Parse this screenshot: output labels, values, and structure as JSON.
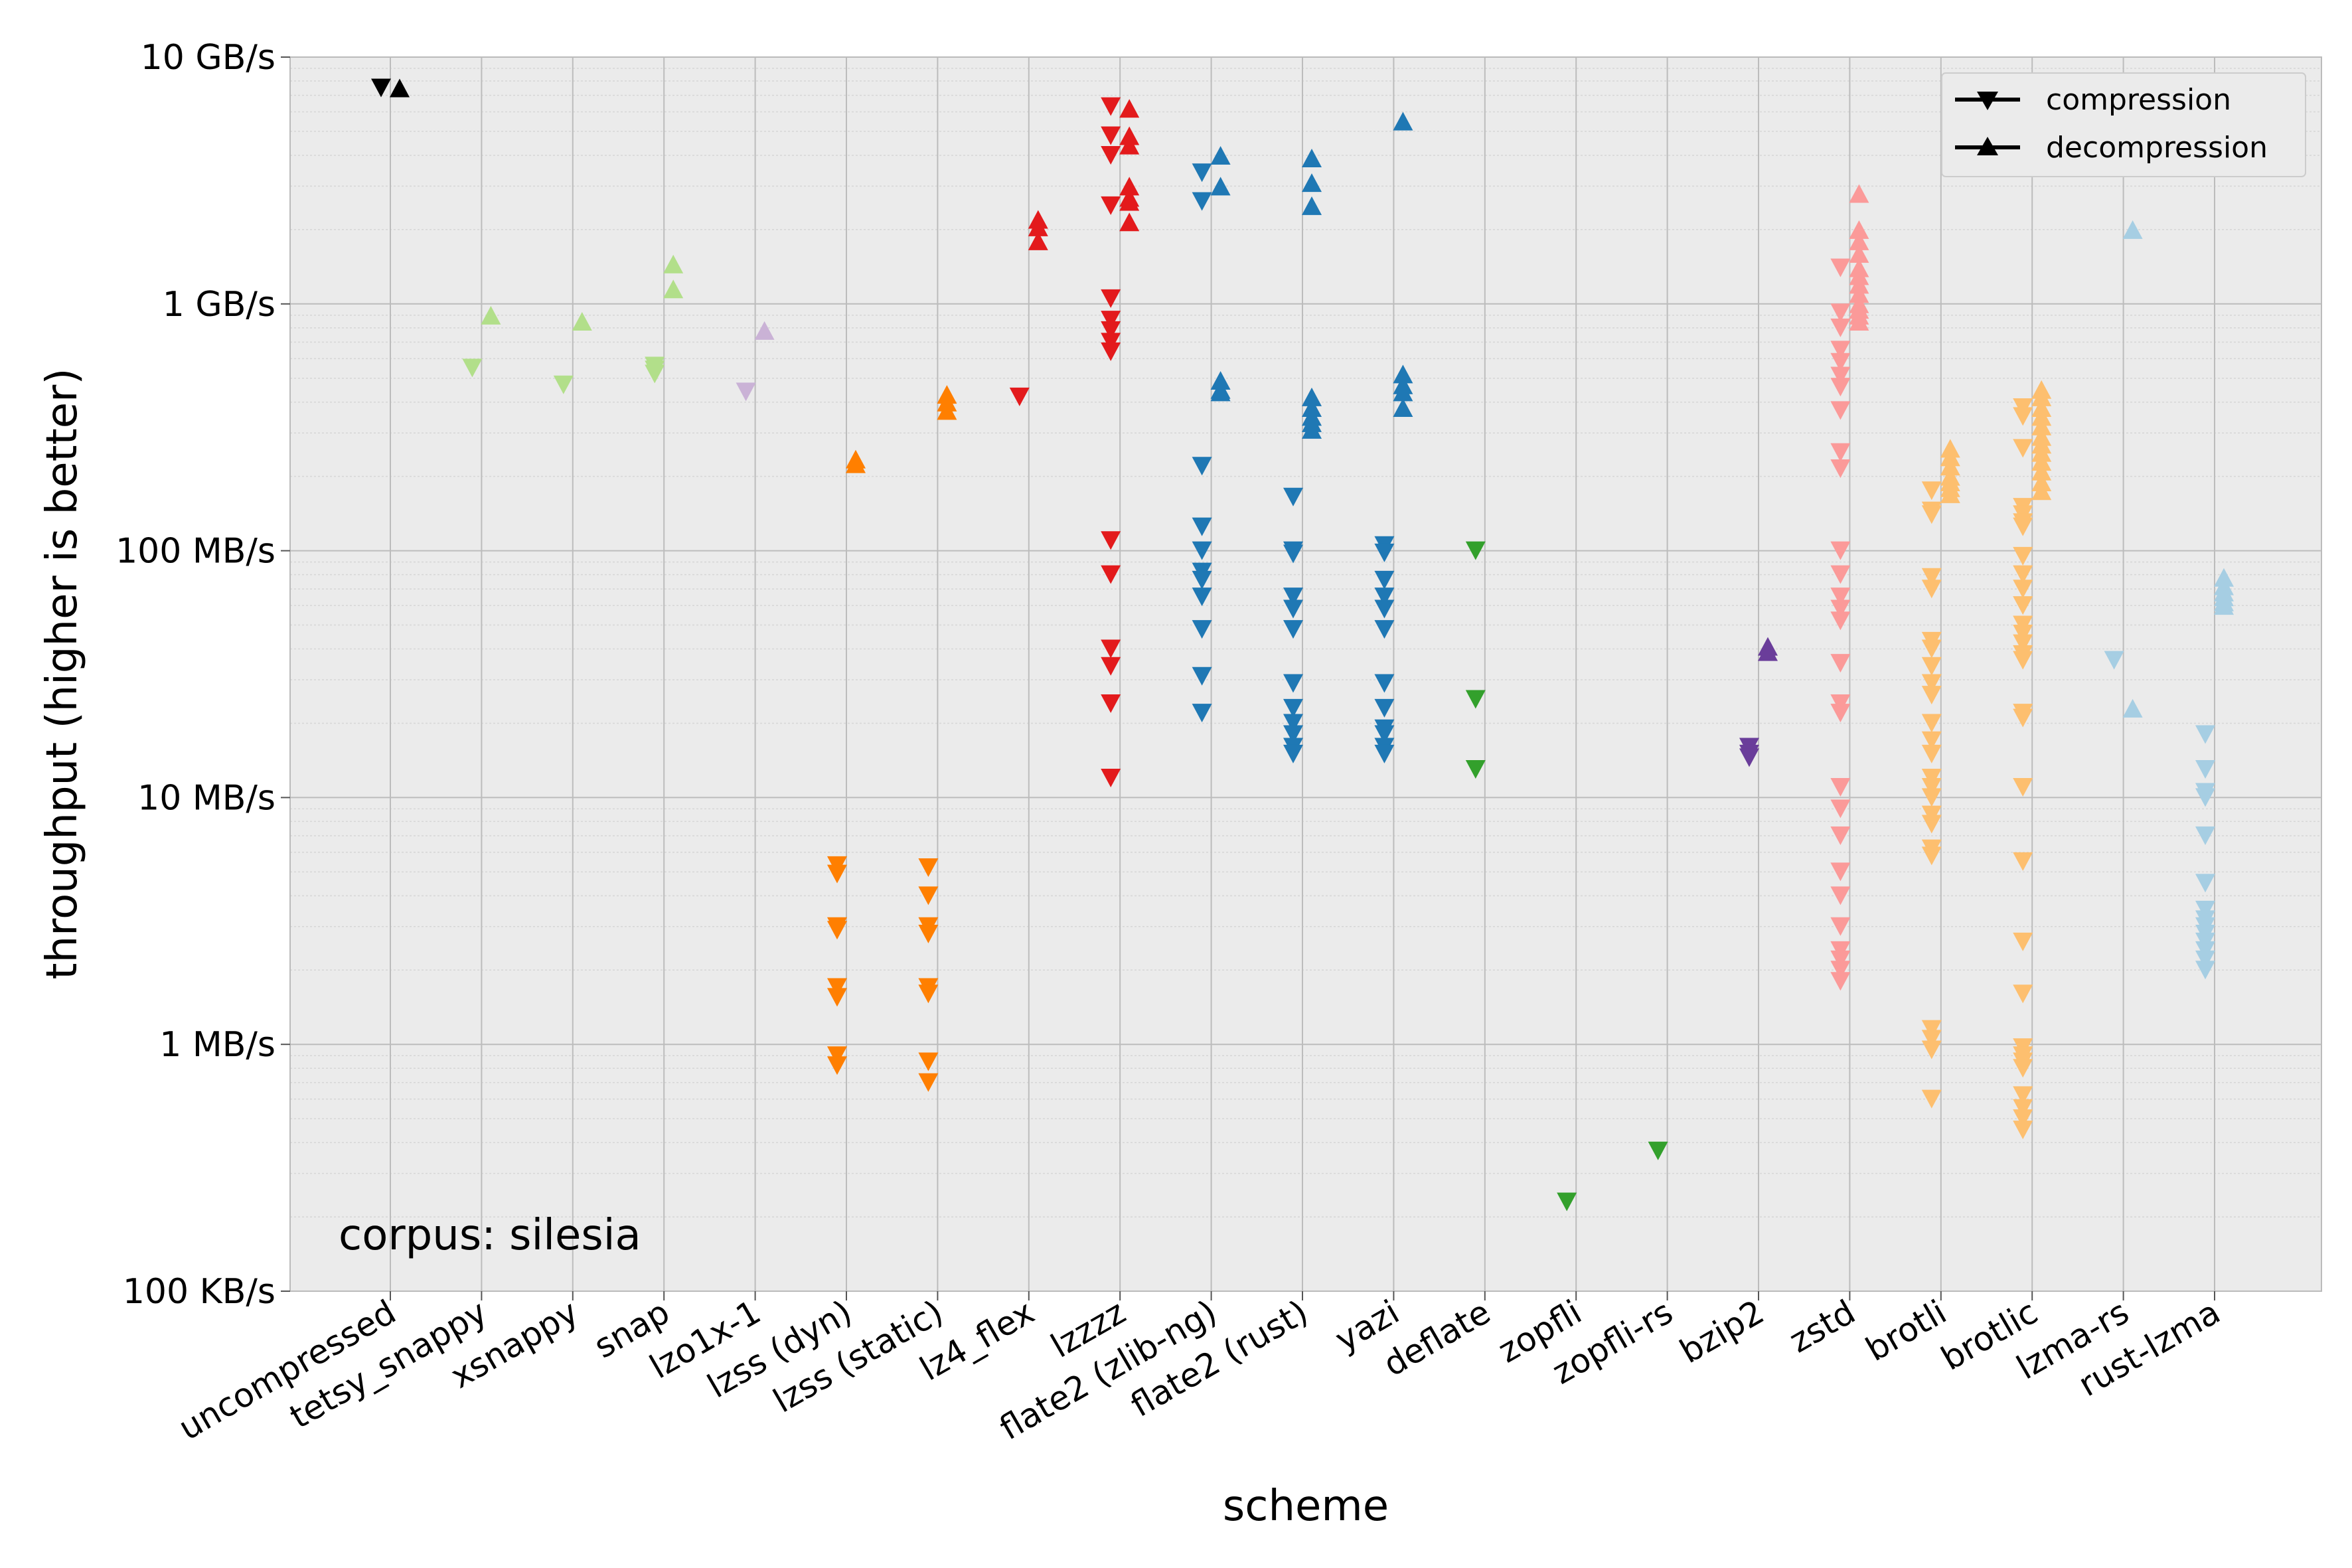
{
  "chart_data": {
    "type": "scatter",
    "title": "",
    "xlabel": "scheme",
    "ylabel": "throughput (higher is better)",
    "yscale": "log",
    "ylim_bytes_per_s": [
      100000,
      10000000000
    ],
    "yticks": [
      {
        "value": 100000,
        "label": "100 KB/s"
      },
      {
        "value": 1000000,
        "label": "1 MB/s"
      },
      {
        "value": 10000000,
        "label": "10 MB/s"
      },
      {
        "value": 100000000,
        "label": "100 MB/s"
      },
      {
        "value": 1000000000,
        "label": "1 GB/s"
      },
      {
        "value": 10000000000,
        "label": "10 GB/s"
      }
    ],
    "grid": true,
    "annotation": "corpus: silesia",
    "legend": {
      "placement": "top-right",
      "entries": [
        {
          "label": "compression",
          "marker": "down-triangle"
        },
        {
          "label": "decompression",
          "marker": "up-triangle"
        }
      ]
    },
    "value_unit": "MB/s",
    "schemes": [
      {
        "name": "uncompressed",
        "color": "#000000",
        "compression": [
          7500
        ],
        "decompression": [
          7500
        ]
      },
      {
        "name": "tetsy_snappy",
        "color": "#b2df8a",
        "compression": [
          550
        ],
        "decompression": [
          900
        ]
      },
      {
        "name": "xsnappy",
        "color": "#b2df8a",
        "compression": [
          470
        ],
        "decompression": [
          850
        ]
      },
      {
        "name": "snap",
        "color": "#b2df8a",
        "compression": [
          560,
          540,
          520
        ],
        "decompression": [
          1450,
          1150
        ]
      },
      {
        "name": "lzo1x-1",
        "color": "#cab2d6",
        "compression": [
          440
        ],
        "decompression": [
          780
        ]
      },
      {
        "name": "lzss (dyn)",
        "color": "#ff7f00",
        "compression": [
          5.3,
          4.9,
          3.0,
          2.9,
          1.7,
          1.55,
          0.9,
          0.82
        ],
        "decompression": [
          235,
          225
        ]
      },
      {
        "name": "lzss (static)",
        "color": "#ff7f00",
        "compression": [
          5.2,
          4.0,
          3.0,
          2.8,
          1.7,
          1.6,
          0.85,
          0.7
        ],
        "decompression": [
          430,
          400,
          370
        ]
      },
      {
        "name": "lz4_flex",
        "color": "#e31a1c",
        "compression": [
          420
        ],
        "decompression": [
          2200,
          2050,
          1800
        ]
      },
      {
        "name": "lzzzz",
        "color": "#e31a1c",
        "compression": [
          6300,
          4800,
          4000,
          2500,
          1050,
          860,
          780,
          700,
          640,
          110,
          80,
          40,
          34,
          24,
          12
        ],
        "decompression": [
          6200,
          4800,
          4400,
          3000,
          2700,
          2600,
          2150
        ]
      },
      {
        "name": "flate2 (zlib-ng)",
        "color": "#1f78b4",
        "compression": [
          3400,
          2600,
          220,
          125,
          100,
          82,
          76,
          65,
          48,
          31,
          22
        ],
        "decompression": [
          4000,
          3000,
          490,
          450,
          440
        ]
      },
      {
        "name": "flate2 (rust)",
        "color": "#1f78b4",
        "compression": [
          165,
          100,
          97,
          65,
          58,
          48,
          29,
          23,
          20,
          18,
          16,
          15
        ],
        "decompression": [
          3900,
          3100,
          2500,
          420,
          380,
          350,
          330,
          310
        ]
      },
      {
        "name": "yazi",
        "color": "#1f78b4",
        "compression": [
          105,
          98,
          76,
          65,
          58,
          48,
          29,
          23,
          19,
          18,
          16,
          15
        ],
        "decompression": [
          5500,
          520,
          470,
          440,
          380
        ]
      },
      {
        "name": "deflate",
        "color": "#33a02c",
        "compression": [
          100,
          25,
          13
        ],
        "decompression": []
      },
      {
        "name": "zopfli",
        "color": "#33a02c",
        "compression": [
          0.23
        ],
        "decompression": []
      },
      {
        "name": "zopfli-rs",
        "color": "#33a02c",
        "compression": [
          0.37
        ],
        "decompression": []
      },
      {
        "name": "bzip2",
        "color": "#6a3d9a",
        "compression": [
          16,
          15,
          14.5
        ],
        "decompression": [
          41,
          39
        ]
      },
      {
        "name": "zstd",
        "color": "#fb9a99",
        "compression": [
          1400,
          920,
          800,
          650,
          580,
          510,
          460,
          370,
          250,
          215,
          100,
          80,
          65,
          58,
          52,
          35,
          24,
          22,
          11,
          9,
          7,
          5,
          4,
          3,
          2.4,
          2.2,
          2,
          1.8
        ],
        "decompression": [
          2800,
          2000,
          1800,
          1600,
          1400,
          1300,
          1200,
          1100,
          1000,
          950,
          900,
          850
        ]
      },
      {
        "name": "brotli",
        "color": "#fdbf6f",
        "compression": [
          175,
          145,
          140,
          78,
          70,
          43,
          40,
          34,
          29,
          26,
          20,
          17,
          15,
          12,
          11,
          10,
          8.5,
          7.8,
          6.2,
          5.8,
          1.15,
          1.05,
          0.95,
          0.6
        ],
        "decompression": [
          260,
          240,
          220,
          200,
          190,
          180,
          170
        ]
      },
      {
        "name": "brotlic",
        "color": "#fdbf6f",
        "compression": [
          380,
          350,
          260,
          150,
          140,
          130,
          125,
          95,
          80,
          70,
          60,
          50,
          46,
          42,
          38,
          36,
          22,
          21,
          11,
          5.5,
          2.6,
          1.6,
          0.97,
          0.9,
          0.85,
          0.8,
          0.62,
          0.55,
          0.5,
          0.45
        ],
        "decompression": [
          450,
          420,
          380,
          350,
          320,
          290,
          270,
          250,
          230,
          210,
          190,
          175
        ]
      },
      {
        "name": "lzma-rs",
        "color": "#a6cee3",
        "compression": [
          36
        ],
        "decompression": [
          2000,
          23
        ]
      },
      {
        "name": "rust-lzma",
        "color": "#a6cee3",
        "compression": [
          18,
          13,
          10.5,
          10,
          7,
          4.5,
          3.5,
          3.2,
          3.0,
          2.8,
          2.6,
          2.4,
          2.2,
          2.0
        ],
        "decompression": [
          78,
          72,
          68,
          65,
          62,
          60
        ]
      }
    ]
  }
}
